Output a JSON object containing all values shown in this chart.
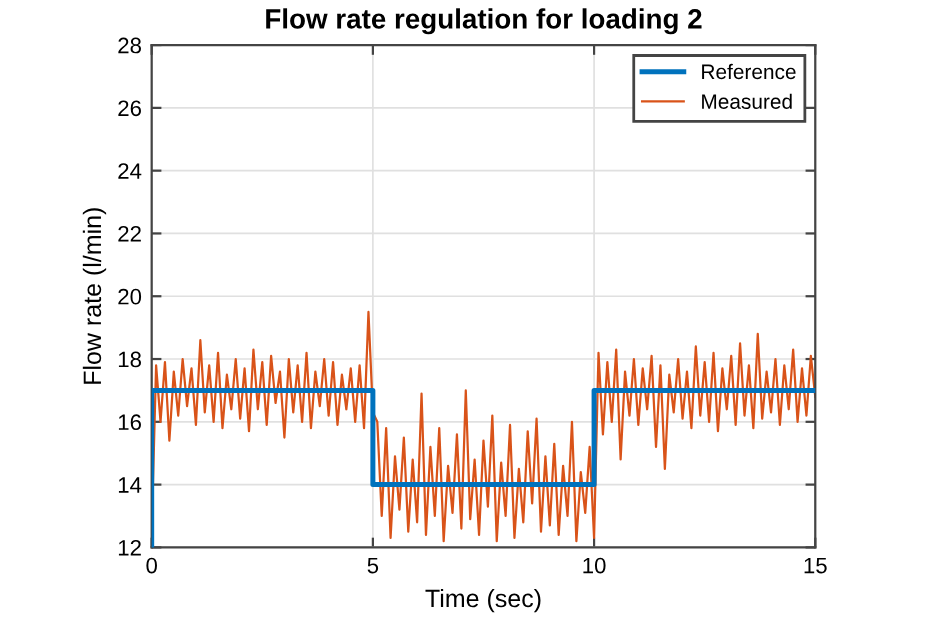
{
  "chart_data": {
    "type": "line",
    "title": "Flow rate regulation for loading 2",
    "xlabel": "Time (sec)",
    "ylabel": "Flow rate (l/min)",
    "xlim": [
      0,
      15
    ],
    "xticks": [
      0,
      5,
      10,
      15
    ],
    "ylim": [
      12,
      28
    ],
    "yticks": [
      12,
      14,
      16,
      18,
      20,
      22,
      24,
      26,
      28
    ],
    "grid": true,
    "legend": "top right",
    "series": [
      {
        "name": "Reference",
        "color": "#0072bd",
        "x": [
          0,
          0,
          5,
          5,
          10,
          10,
          15
        ],
        "values": [
          12,
          17,
          17,
          14,
          14,
          17,
          17
        ]
      },
      {
        "name": "Measured",
        "color": "#d95319",
        "x": [
          0.0,
          0.1,
          0.2,
          0.3,
          0.4,
          0.5,
          0.6,
          0.7,
          0.8,
          0.9,
          1.0,
          1.1,
          1.2,
          1.3,
          1.4,
          1.5,
          1.6,
          1.7,
          1.8,
          1.9,
          2.0,
          2.1,
          2.2,
          2.3,
          2.4,
          2.5,
          2.6,
          2.7,
          2.8,
          2.9,
          3.0,
          3.1,
          3.2,
          3.3,
          3.4,
          3.5,
          3.6,
          3.7,
          3.8,
          3.9,
          4.0,
          4.1,
          4.2,
          4.3,
          4.4,
          4.5,
          4.6,
          4.7,
          4.8,
          4.9,
          5.0,
          5.1,
          5.2,
          5.3,
          5.4,
          5.5,
          5.6,
          5.7,
          5.8,
          5.9,
          6.0,
          6.1,
          6.2,
          6.3,
          6.4,
          6.5,
          6.6,
          6.7,
          6.8,
          6.9,
          7.0,
          7.1,
          7.2,
          7.3,
          7.4,
          7.5,
          7.6,
          7.7,
          7.8,
          7.9,
          8.0,
          8.1,
          8.2,
          8.3,
          8.4,
          8.5,
          8.6,
          8.7,
          8.8,
          8.9,
          9.0,
          9.1,
          9.2,
          9.3,
          9.4,
          9.5,
          9.6,
          9.7,
          9.8,
          9.9,
          10.0,
          10.1,
          10.2,
          10.3,
          10.4,
          10.5,
          10.6,
          10.7,
          10.8,
          10.9,
          11.0,
          11.1,
          11.2,
          11.3,
          11.4,
          11.5,
          11.6,
          11.7,
          11.8,
          11.9,
          12.0,
          12.1,
          12.2,
          12.3,
          12.4,
          12.5,
          12.6,
          12.7,
          12.8,
          12.9,
          13.0,
          13.1,
          13.2,
          13.3,
          13.4,
          13.5,
          13.6,
          13.7,
          13.8,
          13.9,
          14.0,
          14.1,
          14.2,
          14.3,
          14.4,
          14.5,
          14.6,
          14.7,
          14.8,
          14.9,
          15.0
        ],
        "values": [
          12.5,
          17.8,
          16.0,
          17.9,
          15.4,
          17.6,
          16.2,
          18.0,
          16.5,
          17.7,
          15.9,
          18.6,
          16.3,
          17.8,
          16.0,
          18.2,
          15.8,
          17.5,
          16.4,
          18.0,
          16.1,
          17.7,
          15.7,
          18.3,
          16.4,
          17.9,
          15.9,
          18.1,
          16.6,
          17.6,
          15.5,
          18.0,
          16.3,
          17.8,
          16.0,
          18.2,
          15.8,
          17.6,
          16.5,
          18.0,
          16.2,
          17.9,
          15.9,
          17.5,
          16.4,
          17.7,
          16.0,
          17.8,
          15.8,
          19.5,
          16.3,
          16.0,
          13.0,
          15.8,
          12.3,
          14.9,
          13.2,
          15.5,
          12.5,
          14.8,
          12.8,
          16.9,
          12.4,
          15.2,
          13.0,
          15.8,
          12.2,
          14.6,
          13.1,
          15.6,
          12.6,
          17.0,
          12.9,
          14.8,
          12.4,
          15.4,
          13.3,
          16.2,
          12.2,
          14.7,
          13.0,
          15.9,
          12.3,
          14.5,
          12.8,
          15.7,
          13.4,
          16.1,
          12.5,
          14.9,
          12.7,
          15.3,
          12.4,
          14.6,
          13.0,
          16.0,
          12.2,
          14.4,
          13.1,
          15.2,
          12.3,
          18.2,
          15.6,
          17.9,
          16.0,
          18.3,
          14.8,
          17.6,
          16.2,
          18.0,
          15.9,
          17.7,
          16.4,
          18.1,
          15.2,
          17.8,
          14.5,
          17.5,
          16.3,
          18.0,
          16.1,
          17.6,
          15.8,
          18.4,
          16.2,
          17.9,
          16.0,
          18.2,
          15.7,
          17.7,
          16.4,
          18.1,
          15.9,
          18.5,
          16.2,
          17.8,
          15.8,
          18.8,
          16.1,
          17.6,
          16.3,
          18.0,
          15.9,
          17.8,
          16.4,
          18.3,
          16.0,
          17.7,
          16.2,
          18.1,
          16.8
        ]
      }
    ]
  }
}
